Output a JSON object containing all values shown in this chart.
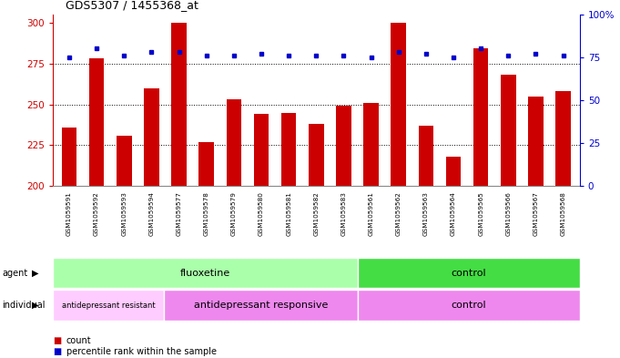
{
  "title": "GDS5307 / 1455368_at",
  "samples": [
    "GSM1059591",
    "GSM1059592",
    "GSM1059593",
    "GSM1059594",
    "GSM1059577",
    "GSM1059578",
    "GSM1059579",
    "GSM1059580",
    "GSM1059581",
    "GSM1059582",
    "GSM1059583",
    "GSM1059561",
    "GSM1059562",
    "GSM1059563",
    "GSM1059564",
    "GSM1059565",
    "GSM1059566",
    "GSM1059567",
    "GSM1059568"
  ],
  "counts": [
    236,
    278,
    231,
    260,
    300,
    227,
    253,
    244,
    245,
    238,
    249,
    251,
    300,
    237,
    218,
    284,
    268,
    255,
    258
  ],
  "percentiles": [
    75,
    80,
    76,
    78,
    78,
    76,
    76,
    77,
    76,
    76,
    76,
    75,
    78,
    77,
    75,
    80,
    76,
    77,
    76
  ],
  "ylim_left": [
    200,
    305
  ],
  "ylim_right": [
    0,
    100
  ],
  "yticks_left": [
    200,
    225,
    250,
    275,
    300
  ],
  "yticks_right": [
    0,
    25,
    50,
    75,
    100
  ],
  "bar_color": "#cc0000",
  "dot_color": "#0000cc",
  "agent_groups": [
    {
      "label": "fluoxetine",
      "start": 0,
      "end": 11,
      "color": "#aaffaa"
    },
    {
      "label": "control",
      "start": 11,
      "end": 19,
      "color": "#44dd44"
    }
  ],
  "individual_groups": [
    {
      "label": "antidepressant resistant",
      "start": 0,
      "end": 4,
      "color": "#ffccff"
    },
    {
      "label": "antidepressant responsive",
      "start": 4,
      "end": 11,
      "color": "#ee88ee"
    },
    {
      "label": "control",
      "start": 11,
      "end": 19,
      "color": "#ee88ee"
    }
  ],
  "label_col_color": "#cccccc",
  "fig_width": 6.81,
  "fig_height": 3.93
}
